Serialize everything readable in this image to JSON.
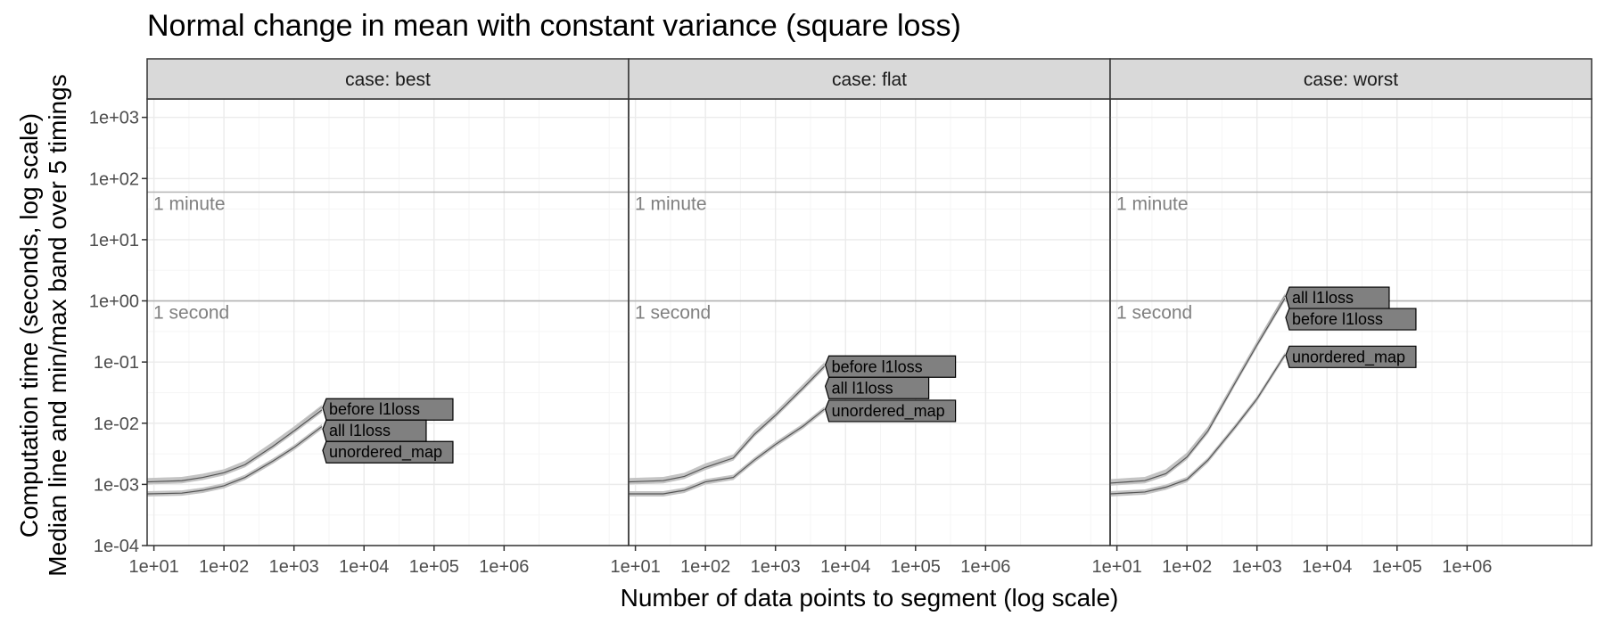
{
  "chart_data": {
    "type": "line",
    "title": "Normal change in mean with constant variance (square loss)",
    "xlabel": "Number of data points to segment (log scale)",
    "ylabel_lines": [
      "Computation time (seconds, log scale)",
      "Median line and min/max band over 5 timings"
    ],
    "x_scale": "log10",
    "y_scale": "log10",
    "xlim": [
      8,
      60000000
    ],
    "ylim": [
      0.0001,
      2000
    ],
    "x_ticks": [
      10,
      100,
      1000,
      10000,
      100000,
      1000000
    ],
    "x_tick_labels": [
      "1e+01",
      "1e+02",
      "1e+03",
      "1e+04",
      "1e+05",
      "1e+06"
    ],
    "y_ticks": [
      0.0001,
      0.001,
      0.01,
      0.1,
      1,
      10,
      100,
      1000
    ],
    "y_tick_labels": [
      "1e-04",
      "1e-03",
      "1e-02",
      "1e-01",
      "1e+00",
      "1e+01",
      "1e+02",
      "1e+03"
    ],
    "reference_lines": [
      {
        "y": 1,
        "label": "1 second"
      },
      {
        "y": 60,
        "label": "1 minute"
      }
    ],
    "grid": true,
    "colors": {
      "strip_bg": "#d9d9d9",
      "grid_major": "#ebebeb",
      "grid_minor": "#f5f5f5",
      "ref_line": "#b3b3b3",
      "ref_text": "#808080",
      "band": "#c4c4c4",
      "line": "#555555",
      "label_bg": "#808080",
      "label_border": "#000000"
    },
    "panels": [
      {
        "strip": "case: best",
        "series": [
          {
            "name": "before l1loss",
            "x": [
              8,
              25,
              50,
              100,
              200,
              500,
              1000,
              2500
            ],
            "y": [
              0.00115,
              0.0012,
              0.00135,
              0.0016,
              0.0022,
              0.0045,
              0.008,
              0.018
            ]
          },
          {
            "name": "all l1loss",
            "x": [
              8,
              25,
              50,
              100,
              200,
              500,
              1000,
              2500
            ],
            "y": [
              0.0011,
              0.00115,
              0.0013,
              0.00155,
              0.0021,
              0.0042,
              0.0075,
              0.0165
            ]
          },
          {
            "name": "unordered_map",
            "x": [
              8,
              25,
              50,
              100,
              200,
              500,
              1000,
              2500
            ],
            "y": [
              0.0007,
              0.00072,
              0.0008,
              0.00095,
              0.0013,
              0.0024,
              0.004,
              0.0088
            ]
          }
        ]
      },
      {
        "strip": "case: flat",
        "series": [
          {
            "name": "before l1loss",
            "x": [
              8,
              25,
              50,
              100,
              250,
              500,
              1000,
              2500,
              5000
            ],
            "y": [
              0.00115,
              0.0012,
              0.0014,
              0.002,
              0.0028,
              0.007,
              0.014,
              0.04,
              0.09
            ]
          },
          {
            "name": "all l1loss",
            "x": [
              8,
              25,
              50,
              100,
              250,
              500,
              1000,
              2500,
              5000
            ],
            "y": [
              0.0011,
              0.00115,
              0.00135,
              0.0019,
              0.0027,
              0.0066,
              0.0135,
              0.038,
              0.085
            ]
          },
          {
            "name": "unordered_map",
            "x": [
              8,
              25,
              50,
              100,
              250,
              500,
              1000,
              2500,
              5000
            ],
            "y": [
              0.0007,
              0.0007,
              0.0008,
              0.0011,
              0.0013,
              0.0025,
              0.0045,
              0.009,
              0.017
            ]
          }
        ]
      },
      {
        "strip": "case: worst",
        "series": [
          {
            "name": "all l1loss",
            "x": [
              8,
              25,
              50,
              100,
              200,
              500,
              1000,
              2500
            ],
            "y": [
              0.0011,
              0.0012,
              0.0016,
              0.003,
              0.008,
              0.05,
              0.2,
              1.2
            ]
          },
          {
            "name": "before l1loss",
            "x": [
              8,
              25,
              50,
              100,
              200,
              500,
              1000,
              2500
            ],
            "y": [
              0.00105,
              0.00115,
              0.0015,
              0.0028,
              0.0075,
              0.048,
              0.19,
              1.1
            ]
          },
          {
            "name": "unordered_map",
            "x": [
              8,
              25,
              50,
              100,
              200,
              500,
              1000,
              2500
            ],
            "y": [
              0.0007,
              0.00075,
              0.0009,
              0.0012,
              0.0025,
              0.009,
              0.025,
              0.13
            ]
          }
        ]
      }
    ]
  }
}
